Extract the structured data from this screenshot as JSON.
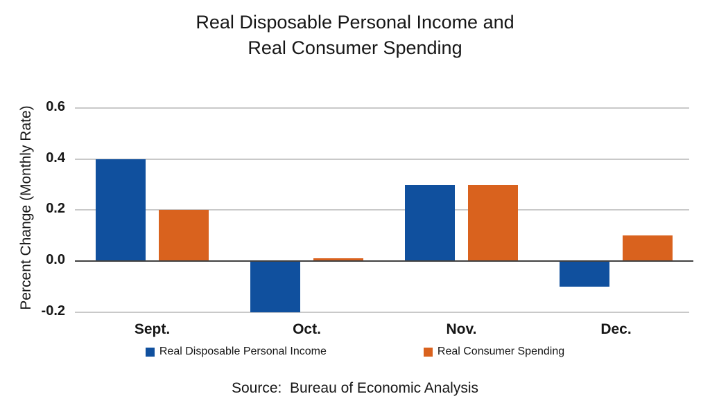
{
  "title": {
    "line1": "Real Disposable Personal Income and",
    "line2": "Real Consumer Spending"
  },
  "chart_data": {
    "type": "bar",
    "categories": [
      "Sept.",
      "Oct.",
      "Nov.",
      "Dec."
    ],
    "series": [
      {
        "name": "Real Disposable Personal Income",
        "color": "#10509E",
        "values": [
          0.4,
          -0.2,
          0.3,
          -0.1
        ]
      },
      {
        "name": "Real Consumer Spending",
        "color": "#D9621E",
        "values": [
          0.2,
          0.01,
          0.3,
          0.1
        ]
      }
    ],
    "title": "Real Disposable Personal Income and Real Consumer Spending",
    "xlabel": "",
    "ylabel": "Percent Change (Monthly Rate)",
    "yticks": [
      {
        "label": "0.6",
        "value": 0.6
      },
      {
        "label": "0.4",
        "value": 0.4
      },
      {
        "label": "0.2",
        "value": 0.2
      },
      {
        "label": "0.0",
        "value": 0.0
      },
      {
        "label": "-0.2",
        "value": -0.2
      }
    ],
    "ylim": [
      -0.2,
      0.6
    ],
    "grid": true,
    "legend_position": "bottom"
  },
  "colors": {
    "income_bar": "#10509E",
    "spending_bar": "#D9621E",
    "gridline": "#C9C9C9",
    "zero_line": "#404040"
  },
  "source": "Source:  Bureau of Economic Analysis"
}
